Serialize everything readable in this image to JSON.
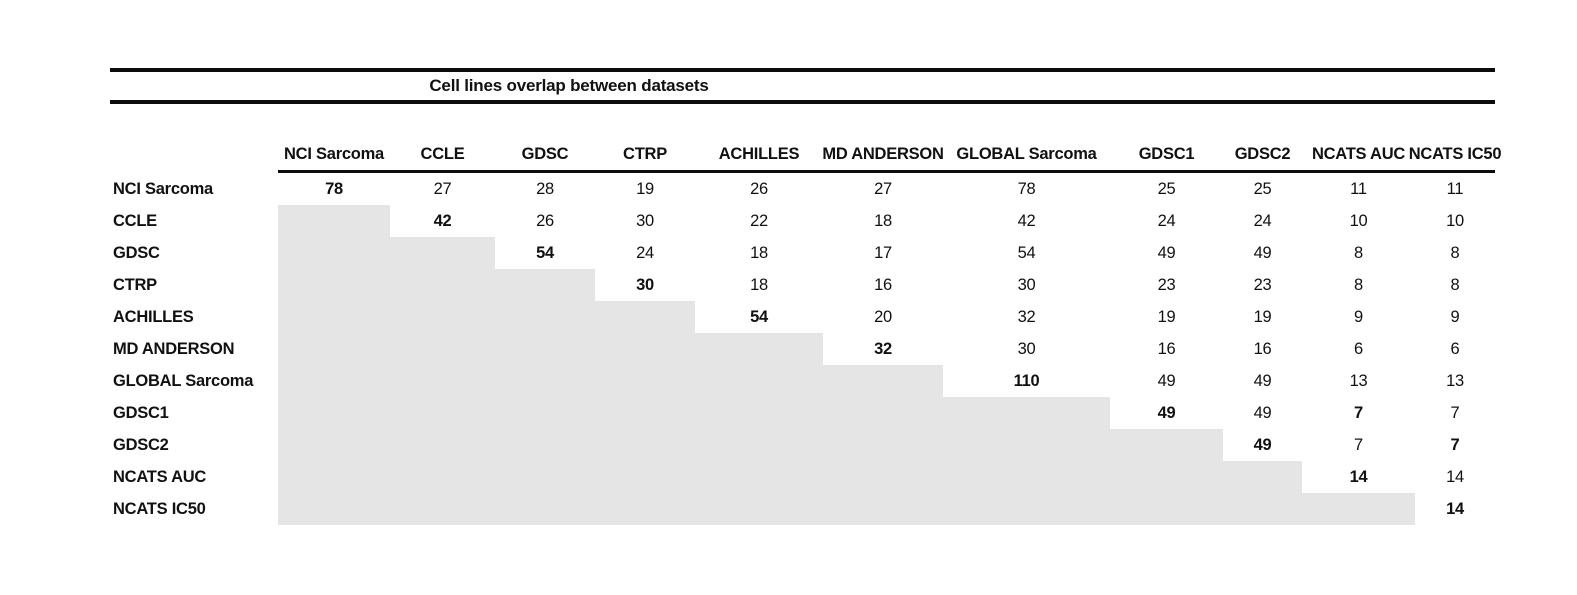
{
  "title": "Cell lines overlap between datasets",
  "colors": {
    "shaded_cell": "#e6e5e5",
    "rule": "#0c0c0c",
    "text": "#111111",
    "background": "#ffffff"
  },
  "chart_data": {
    "type": "table",
    "title": "Cell lines overlap between datasets",
    "columns": [
      "NCI Sarcoma",
      "CCLE",
      "GDSC",
      "CTRP",
      "ACHILLES",
      "MD ANDERSON",
      "GLOBAL Sarcoma",
      "GDSC1",
      "GDSC2",
      "NCATS AUC",
      "NCATS IC50"
    ],
    "rows": [
      "NCI Sarcoma",
      "CCLE",
      "GDSC",
      "CTRP",
      "ACHILLES",
      "MD ANDERSON",
      "GLOBAL Sarcoma",
      "GDSC1",
      "GDSC2",
      "NCATS AUC",
      "NCATS IC50"
    ],
    "matrix": [
      [
        78,
        27,
        28,
        19,
        26,
        27,
        78,
        25,
        25,
        11,
        11
      ],
      [
        null,
        42,
        26,
        30,
        22,
        18,
        42,
        24,
        24,
        10,
        10
      ],
      [
        null,
        null,
        54,
        24,
        18,
        17,
        54,
        49,
        49,
        8,
        8
      ],
      [
        null,
        null,
        null,
        30,
        18,
        16,
        30,
        23,
        23,
        8,
        8
      ],
      [
        null,
        null,
        null,
        null,
        54,
        20,
        32,
        19,
        19,
        9,
        9
      ],
      [
        null,
        null,
        null,
        null,
        null,
        32,
        30,
        16,
        16,
        6,
        6
      ],
      [
        null,
        null,
        null,
        null,
        null,
        null,
        110,
        49,
        49,
        13,
        13
      ],
      [
        null,
        null,
        null,
        null,
        null,
        null,
        null,
        49,
        49,
        7,
        7
      ],
      [
        null,
        null,
        null,
        null,
        null,
        null,
        null,
        null,
        49,
        7,
        7
      ],
      [
        null,
        null,
        null,
        null,
        null,
        null,
        null,
        null,
        null,
        14,
        14
      ],
      [
        null,
        null,
        null,
        null,
        null,
        null,
        null,
        null,
        null,
        null,
        14
      ]
    ],
    "bold_cells": [
      [
        0,
        0
      ],
      [
        1,
        1
      ],
      [
        2,
        2
      ],
      [
        3,
        3
      ],
      [
        4,
        4
      ],
      [
        5,
        5
      ],
      [
        6,
        6
      ],
      [
        7,
        7
      ],
      [
        8,
        8
      ],
      [
        9,
        9
      ],
      [
        10,
        10
      ],
      [
        7,
        9
      ],
      [
        8,
        10
      ]
    ],
    "shaded_region": "lower_triangle",
    "legend": "none",
    "grid_lines": "header_underline_and_title_rules_only"
  }
}
